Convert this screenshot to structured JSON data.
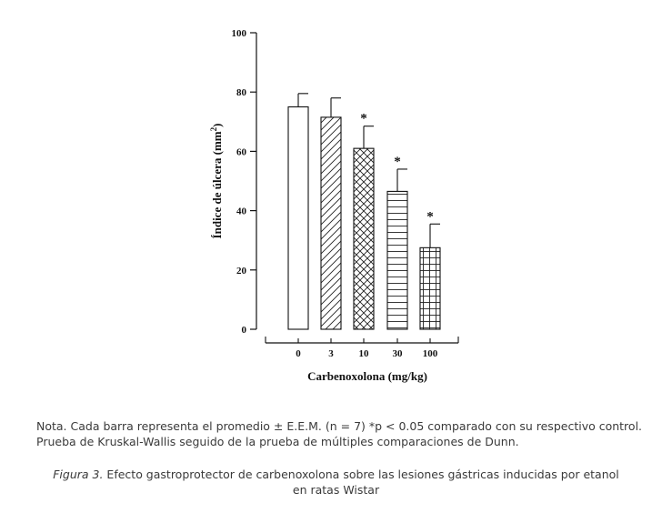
{
  "chart_data": {
    "type": "bar",
    "categories": [
      "0",
      "3",
      "10",
      "30",
      "100"
    ],
    "values": [
      75,
      71.5,
      61,
      46.5,
      27.5
    ],
    "errors": [
      4.5,
      6.5,
      7.5,
      7.5,
      8
    ],
    "significance": [
      "",
      "",
      "*",
      "*",
      "*"
    ],
    "patterns": [
      "none",
      "diagonal",
      "crosshatch",
      "horizontal",
      "grid"
    ],
    "ylabel_main": "Índice de úlcera (mm",
    "ylabel_sup": "2",
    "ylabel_end": ")",
    "xlabel": "Carbenoxolona (mg/kg)",
    "ylim": [
      0,
      100
    ],
    "yticks": [
      "0",
      "20",
      "40",
      "60",
      "80",
      "100"
    ],
    "grid": false,
    "legend": "none"
  },
  "note": {
    "line1": "Nota. Cada barra representa el promedio ± E.E.M. (n = 7) *p < 0.05 comparado con su respectivo control.",
    "line2": "Prueba de Kruskal-Wallis seguido de la prueba de múltiples comparaciones de Dunn."
  },
  "caption": {
    "label": "Figura 3.",
    "line1": " Efecto gastroprotector de carbenoxolona sobre las lesiones gástricas inducidas por etanol",
    "line2": "en ratas Wistar"
  }
}
